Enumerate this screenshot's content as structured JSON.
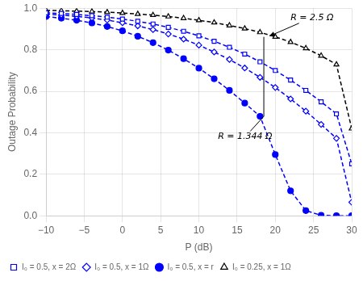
{
  "chart_data": {
    "type": "line",
    "xlabel": "P (dB)",
    "ylabel": "Outage Probability",
    "x": [
      -10,
      -8,
      -6,
      -4,
      -2,
      0,
      2,
      4,
      6,
      8,
      10,
      12,
      14,
      16,
      18,
      20,
      22,
      24,
      26,
      28,
      30
    ],
    "series": [
      {
        "name": "I₀ = 0.5, x = 2Ω",
        "color": "blue",
        "marker": "open-square",
        "line_style": "dashed",
        "values": [
          0.978,
          0.975,
          0.97,
          0.964,
          0.957,
          0.948,
          0.937,
          0.924,
          0.908,
          0.889,
          0.867,
          0.841,
          0.812,
          0.779,
          0.742,
          0.7,
          0.654,
          0.604,
          0.549,
          0.491,
          0.25
        ]
      },
      {
        "name": "I₀ = 0.5, x = 1Ω",
        "color": "blue",
        "marker": "open-diamond",
        "line_style": "dashed",
        "values": [
          0.972,
          0.967,
          0.961,
          0.953,
          0.943,
          0.93,
          0.915,
          0.897,
          0.876,
          0.851,
          0.822,
          0.789,
          0.753,
          0.712,
          0.667,
          0.618,
          0.563,
          0.504,
          0.44,
          0.373,
          0.065
        ]
      },
      {
        "name": "I₀ = 0.5, x = r",
        "color": "blue",
        "marker": "circle",
        "line_style": "dashed",
        "values": [
          0.96,
          0.952,
          0.942,
          0.929,
          0.912,
          0.891,
          0.865,
          0.834,
          0.798,
          0.757,
          0.711,
          0.66,
          0.604,
          0.543,
          0.479,
          0.295,
          0.12,
          0.025,
          0.002,
          0.0,
          0.0
        ]
      },
      {
        "name": "I₀ = 0.25, x = 1Ω",
        "color": "black",
        "marker": "open-triangle",
        "line_style": "dashed",
        "values": [
          0.99,
          0.988,
          0.986,
          0.984,
          0.981,
          0.977,
          0.972,
          0.967,
          0.96,
          0.952,
          0.942,
          0.931,
          0.917,
          0.902,
          0.884,
          0.862,
          0.837,
          0.807,
          0.771,
          0.729,
          0.42
        ]
      }
    ],
    "xlim": [
      -10,
      30
    ],
    "ylim": [
      0,
      1
    ],
    "xticks": [
      {
        "value": -10,
        "label": "−10"
      },
      {
        "value": -5,
        "label": "−5"
      },
      0,
      5,
      10,
      15,
      20,
      25,
      30
    ],
    "yticks": [
      {
        "value": 0,
        "label": "0.0"
      },
      0.2,
      0.4,
      0.6,
      0.8,
      {
        "value": 1.0,
        "label": "1.0"
      }
    ],
    "grid": true,
    "legend": "lower left",
    "annotations": [
      {
        "text": "R = 2.5 Ω",
        "x": 19.0,
        "y": 0.862,
        "text_x": 22.0,
        "text_y": 0.955,
        "arrow": "head"
      },
      {
        "text": "R = 1.344 Ω",
        "x": 18.5,
        "y": 0.479,
        "text_x": 12.5,
        "text_y": 0.38,
        "arrow": "none"
      }
    ],
    "vline": {
      "x": 18.5,
      "y_top": 0.862,
      "y_bottom": 0.479
    }
  }
}
